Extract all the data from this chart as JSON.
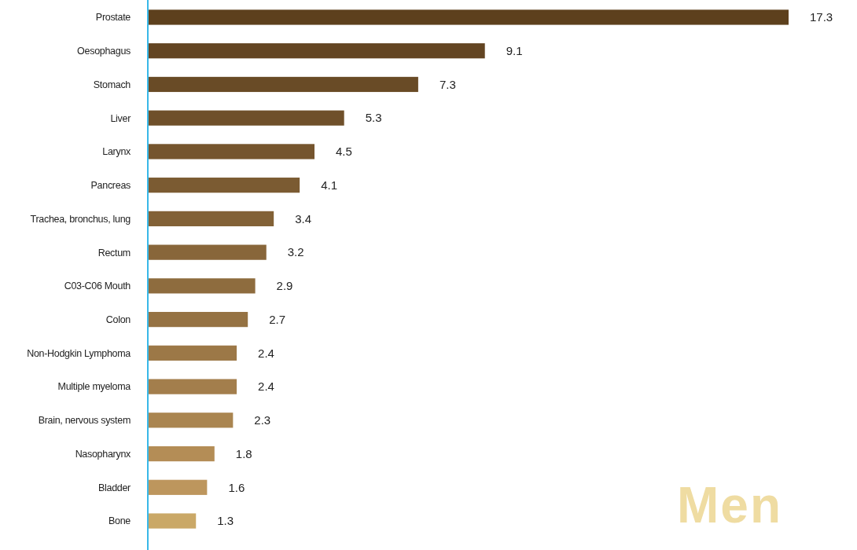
{
  "chart_data": {
    "type": "bar",
    "orientation": "horizontal",
    "data_labels": true,
    "categories": [
      "Prostate",
      "Oesophagus",
      "Stomach",
      "Liver",
      "Larynx",
      "Pancreas",
      "Trachea, bronchus, lung",
      "Rectum",
      "C03-C06 Mouth",
      "Colon",
      "Non-Hodgkin Lymphoma",
      "Multiple myeloma",
      "Brain, nervous system",
      "Nasopharynx",
      "Bladder",
      "Bone"
    ],
    "values": [
      17.3,
      9.1,
      7.3,
      5.3,
      4.5,
      4.1,
      3.4,
      3.2,
      2.9,
      2.7,
      2.4,
      2.4,
      2.3,
      1.8,
      1.6,
      1.3
    ],
    "colors": [
      "#5d401d",
      "#634522",
      "#694b26",
      "#6f502a",
      "#75552e",
      "#7b5b32",
      "#826136",
      "#88663a",
      "#8e6c3e",
      "#957243",
      "#9c7847",
      "#a37e4c",
      "#aa8550",
      "#b48d56",
      "#bd965d",
      "#caa867"
    ],
    "annotations": [
      "Men"
    ]
  }
}
